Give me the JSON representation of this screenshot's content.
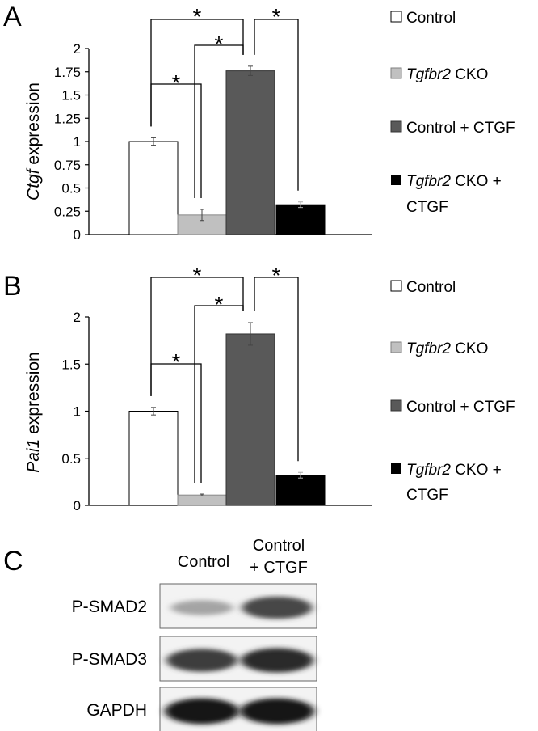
{
  "panels": {
    "a": "A",
    "b": "B",
    "c": "C"
  },
  "colors": {
    "control": "#ffffff",
    "tgfbr2_cko": "#c0c0c0",
    "control_ctgf": "#595959",
    "tgfbr2_cko_ctgf": "#000000"
  },
  "legend": {
    "control": "Control",
    "cko_gene": "Tgfbr2",
    "cko_suffix": "CKO",
    "cko_ctgf_suffix": "CKO +",
    "ctgf_line2": "CTGF",
    "control_ctgf": "Control + CTGF"
  },
  "significance_marker": "*",
  "chart_data": [
    {
      "type": "bar",
      "panel": "A",
      "ylabel_gene": "Ctgf",
      "ylabel_suffix": " expression",
      "ylim": [
        0,
        2
      ],
      "yticks": [
        "0",
        "0.25",
        "0.5",
        "0.75",
        "1",
        "1.25",
        "1.5",
        "1.75",
        "2"
      ],
      "categories": [
        "Control",
        "Tgfbr2 CKO",
        "Control + CTGF",
        "Tgfbr2 CKO + CTGF"
      ],
      "values": [
        1.0,
        0.21,
        1.76,
        0.32
      ],
      "errors": [
        0.04,
        0.06,
        0.05,
        0.03
      ],
      "grid": false
    },
    {
      "type": "bar",
      "panel": "B",
      "ylabel_gene": "Pai1",
      "ylabel_suffix": " expression",
      "ylim": [
        0,
        2
      ],
      "yticks": [
        "0",
        "0.5",
        "1",
        "1.5",
        "2"
      ],
      "categories": [
        "Control",
        "Tgfbr2 CKO",
        "Control + CTGF",
        "Tgfbr2 CKO + CTGF"
      ],
      "values": [
        1.0,
        0.11,
        1.82,
        0.32
      ],
      "errors": [
        0.04,
        0.01,
        0.12,
        0.03
      ],
      "grid": false
    }
  ],
  "western_blot": {
    "columns": [
      "Control",
      "Control",
      "+ CTGF"
    ],
    "rows": [
      {
        "label": "P-SMAD2",
        "intensity": [
          0.25,
          0.75
        ]
      },
      {
        "label": "P-SMAD3",
        "intensity": [
          0.8,
          0.9
        ]
      },
      {
        "label": "GAPDH",
        "intensity": [
          1.0,
          1.0
        ]
      }
    ]
  }
}
